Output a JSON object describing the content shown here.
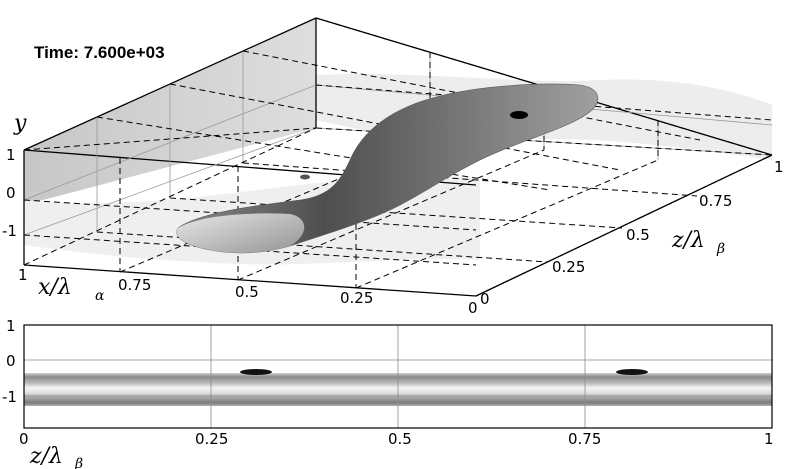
{
  "time_label": "Time: 7.600e+03",
  "top_view": {
    "y_axis": {
      "symbol": "y",
      "ticks": [
        "1",
        "0",
        "-1"
      ]
    },
    "x_axis": {
      "symbol": "x/λ",
      "subscript": "α",
      "ticks": [
        "1",
        "0.75",
        "0.5",
        "0.25",
        "0"
      ]
    },
    "z_axis": {
      "symbol": "z/λ",
      "subscript": "β",
      "ticks": [
        "0",
        "0.25",
        "0.5",
        "0.75",
        "1"
      ]
    }
  },
  "bottom_view": {
    "y_ticks": [
      "1",
      "0",
      "-1"
    ],
    "z_axis": {
      "symbol": "z/λ",
      "subscript": "β",
      "ticks": [
        "0",
        "0.25",
        "0.5",
        "0.75",
        "1"
      ]
    }
  },
  "colors": {
    "surface_dark": "#6a6a6a",
    "surface_light": "#d8d8d8",
    "wall_shade": "#c8c8c8",
    "plane_shade": "#ececec"
  }
}
